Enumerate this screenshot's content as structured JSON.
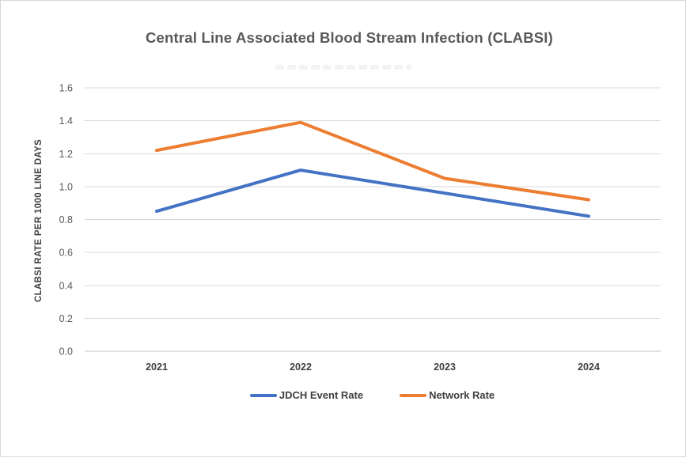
{
  "chart_data": {
    "type": "line",
    "title": "Central Line Associated Blood Stream Infection (CLABSI)",
    "categories": [
      "2021",
      "2022",
      "2023",
      "2024"
    ],
    "series": [
      {
        "name": "JDCH Event Rate",
        "color": "#4472C4",
        "values": [
          0.85,
          1.1,
          0.96,
          0.82
        ]
      },
      {
        "name": "Network Rate",
        "color": "#ED7D31",
        "values": [
          1.22,
          1.39,
          1.05,
          0.92
        ]
      }
    ],
    "xlabel": "",
    "ylabel": "CLABSI RATE PER 1000 LINE DAYS",
    "ylim": [
      0.0,
      1.6
    ],
    "ytick_step": 0.2,
    "ytick_labels": [
      "0.0",
      "0.2",
      "0.4",
      "0.6",
      "0.8",
      "1.0",
      "1.2",
      "1.4",
      "1.6"
    ],
    "grid": true,
    "legend_position": "bottom"
  },
  "colors": {
    "background": "#ffffff",
    "page_border": "#d8d8d8",
    "gridline": "#d9d9d9",
    "baseline": "#c6c6c6",
    "title_text": "#595959",
    "tick_text": "#595959",
    "category_text": "#404040",
    "legend_text": "#404040"
  }
}
